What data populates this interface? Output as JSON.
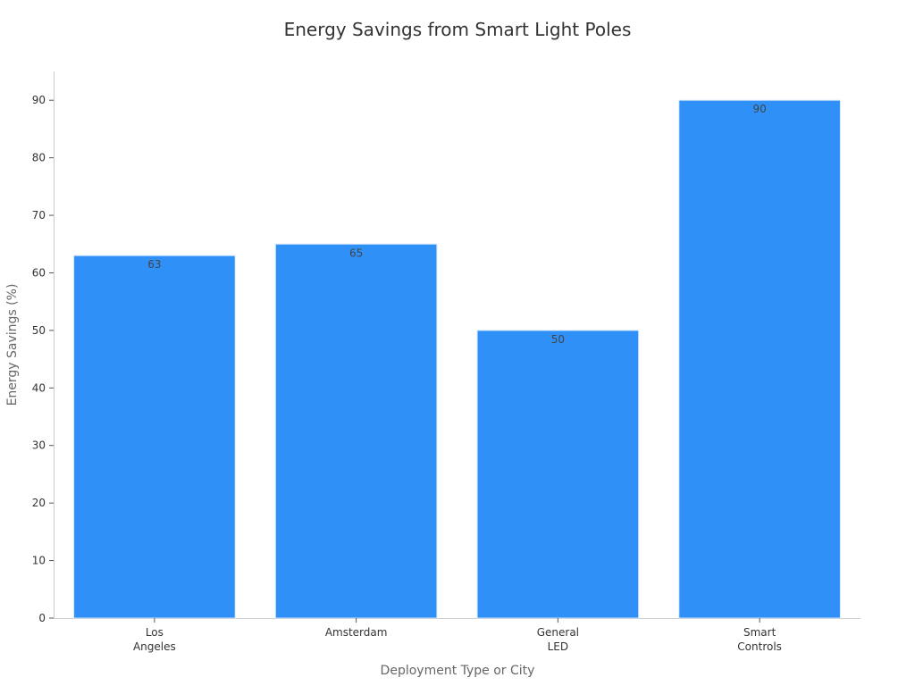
{
  "chart_data": {
    "type": "bar",
    "title": "Energy Savings from Smart Light Poles",
    "xlabel": "Deployment Type or City",
    "ylabel": "Energy Savings (%)",
    "categories": [
      [
        "Los",
        "Angeles"
      ],
      [
        "Amsterdam"
      ],
      [
        "General",
        "LED"
      ],
      [
        "Smart",
        "Controls"
      ]
    ],
    "values": [
      63,
      65,
      50,
      90
    ],
    "ylim": [
      0,
      95
    ],
    "yticks": [
      0,
      10,
      20,
      30,
      40,
      50,
      60,
      70,
      80,
      90
    ],
    "grid": false,
    "legend": "none",
    "bar_color": "#2f91f7"
  }
}
